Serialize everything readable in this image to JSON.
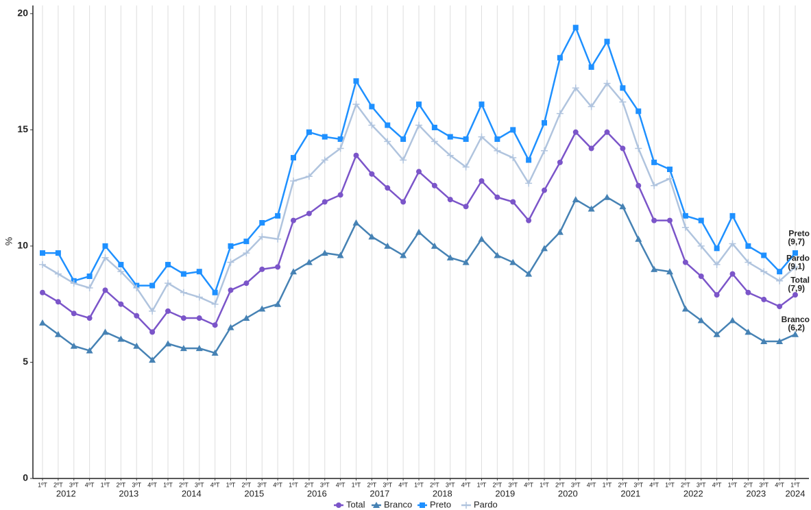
{
  "chart_data": {
    "type": "line",
    "y_label": "%",
    "categories": [
      "1ºT",
      "2ºT",
      "3ºT",
      "4ºT",
      "1ºT",
      "2ºT",
      "3ºT",
      "4ºT",
      "1ºT",
      "2ºT",
      "3ºT",
      "4ºT",
      "1ºT",
      "2ºT",
      "3ºT",
      "4ºT",
      "1ºT",
      "2ºT",
      "3ºT",
      "4ºT",
      "1ºT",
      "2ºT",
      "3ºT",
      "4ºT",
      "1ºT",
      "2ºT",
      "3ºT",
      "4ºT",
      "1ºT",
      "2ºT",
      "3ºT",
      "4ºT",
      "1ºT",
      "2ºT",
      "3ºT",
      "4ºT",
      "1ºT",
      "2ºT",
      "3ºT",
      "4ºT",
      "1ºT",
      "2ºT",
      "3ºT",
      "4ºT",
      "1ºT",
      "2ºT",
      "3ºT",
      "4ºT",
      "1ºT"
    ],
    "years": [
      "2012",
      "2013",
      "2014",
      "2015",
      "2016",
      "2017",
      "2018",
      "2019",
      "2020",
      "2021",
      "2022",
      "2023",
      "2024"
    ],
    "ylim": [
      0,
      20.35
    ],
    "yticks": [
      0,
      5,
      10,
      15,
      20
    ],
    "grid": true,
    "series": [
      {
        "name": "Total",
        "color": "#7b55c9",
        "marker": "circle",
        "end_label": "(7,9)",
        "values": [
          8.0,
          7.6,
          7.1,
          6.9,
          8.1,
          7.5,
          7.0,
          6.3,
          7.2,
          6.9,
          6.9,
          6.6,
          8.1,
          8.4,
          9.0,
          9.1,
          11.1,
          11.4,
          11.9,
          12.2,
          13.9,
          13.1,
          12.5,
          11.9,
          13.2,
          12.6,
          12.0,
          11.7,
          12.8,
          12.1,
          11.9,
          11.1,
          12.4,
          13.6,
          14.9,
          14.2,
          14.9,
          14.2,
          12.6,
          11.1,
          11.1,
          9.3,
          8.7,
          7.9,
          8.8,
          8.0,
          7.7,
          7.4,
          7.9
        ]
      },
      {
        "name": "Branco",
        "color": "#4682b4",
        "marker": "triangle",
        "end_label": "(6,2)",
        "values": [
          6.7,
          6.2,
          5.7,
          5.5,
          6.3,
          6.0,
          5.7,
          5.1,
          5.8,
          5.6,
          5.6,
          5.4,
          6.5,
          6.9,
          7.3,
          7.5,
          8.9,
          9.3,
          9.7,
          9.6,
          11.0,
          10.4,
          10.0,
          9.6,
          10.6,
          10.0,
          9.5,
          9.3,
          10.3,
          9.6,
          9.3,
          8.8,
          9.9,
          10.6,
          12.0,
          11.6,
          12.1,
          11.7,
          10.3,
          9.0,
          8.9,
          7.3,
          6.8,
          6.2,
          6.8,
          6.3,
          5.9,
          5.9,
          6.2
        ]
      },
      {
        "name": "Preto",
        "color": "#1e90ff",
        "marker": "square",
        "end_label": "(9,7)",
        "values": [
          9.7,
          9.7,
          8.5,
          8.7,
          10.0,
          9.2,
          8.3,
          8.3,
          9.2,
          8.8,
          8.9,
          8.0,
          10.0,
          10.2,
          11.0,
          11.3,
          13.8,
          14.9,
          14.7,
          14.6,
          17.1,
          16.0,
          15.2,
          14.6,
          16.1,
          15.1,
          14.7,
          14.6,
          16.1,
          14.6,
          15.0,
          13.7,
          15.3,
          18.1,
          19.4,
          17.7,
          18.8,
          16.8,
          15.8,
          13.6,
          13.3,
          11.3,
          11.1,
          9.9,
          11.3,
          10.0,
          9.6,
          8.9,
          9.7
        ]
      },
      {
        "name": "Pardo",
        "color": "#b0c4de",
        "marker": "plus",
        "end_label": "(9,1)",
        "values": [
          9.2,
          8.8,
          8.4,
          8.2,
          9.5,
          8.9,
          8.2,
          7.2,
          8.4,
          8.0,
          7.8,
          7.5,
          9.3,
          9.7,
          10.4,
          10.3,
          12.8,
          13.0,
          13.7,
          14.2,
          16.1,
          15.2,
          14.5,
          13.7,
          15.2,
          14.5,
          13.9,
          13.4,
          14.7,
          14.1,
          13.8,
          12.7,
          14.1,
          15.7,
          16.8,
          16.0,
          17.0,
          16.2,
          14.2,
          12.6,
          12.9,
          10.8,
          10.0,
          9.2,
          10.1,
          9.3,
          8.9,
          8.5,
          9.1
        ]
      }
    ]
  }
}
